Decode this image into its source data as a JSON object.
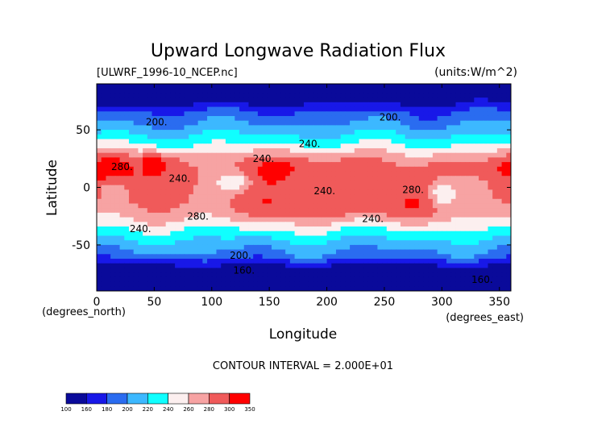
{
  "chart_data": {
    "type": "contour",
    "title": "Upward Longwave Radiation Flux",
    "subtitle_left": "[ULWRF_1996-10_NCEP.nc]",
    "subtitle_right": "(units:W/m^2)",
    "xlabel": "Longitude",
    "ylabel": "Latitude",
    "x_unit_label": "(degrees_east)",
    "y_unit_label": "(degrees_north)",
    "xlim": [
      0,
      360
    ],
    "ylim": [
      -90,
      90
    ],
    "x_ticks": [
      0,
      50,
      100,
      150,
      200,
      250,
      300,
      350
    ],
    "y_ticks": [
      -50,
      0,
      50
    ],
    "contour_interval_text": "CONTOUR INTERVAL = 2.000E+01",
    "contour_labels": [
      {
        "text": "200.",
        "x": 52,
        "y": 54
      },
      {
        "text": "200.",
        "x": 255,
        "y": 58
      },
      {
        "text": "240.",
        "x": 185,
        "y": 35
      },
      {
        "text": "240.",
        "x": 145,
        "y": 22
      },
      {
        "text": "280.",
        "x": 22,
        "y": 15
      },
      {
        "text": "240.",
        "x": 72,
        "y": 5
      },
      {
        "text": "240.",
        "x": 198,
        "y": -6
      },
      {
        "text": "280.",
        "x": 275,
        "y": -5
      },
      {
        "text": "280.",
        "x": 88,
        "y": -28
      },
      {
        "text": "240.",
        "x": 240,
        "y": -30
      },
      {
        "text": "240.",
        "x": 38,
        "y": -39
      },
      {
        "text": "200.",
        "x": 125,
        "y": -62
      },
      {
        "text": "160.",
        "x": 128,
        "y": -75
      },
      {
        "text": "160.",
        "x": 335,
        "y": -83
      }
    ],
    "colorbar": {
      "levels": [
        100,
        160,
        180,
        200,
        220,
        240,
        260,
        280,
        300,
        350
      ],
      "colors": [
        "#0a0a9a",
        "#1818e8",
        "#2a6cf0",
        "#3cb8ff",
        "#10ffff",
        "#fcefef",
        "#f7a3a3",
        "#f05a5a",
        "#ff0000"
      ]
    }
  }
}
